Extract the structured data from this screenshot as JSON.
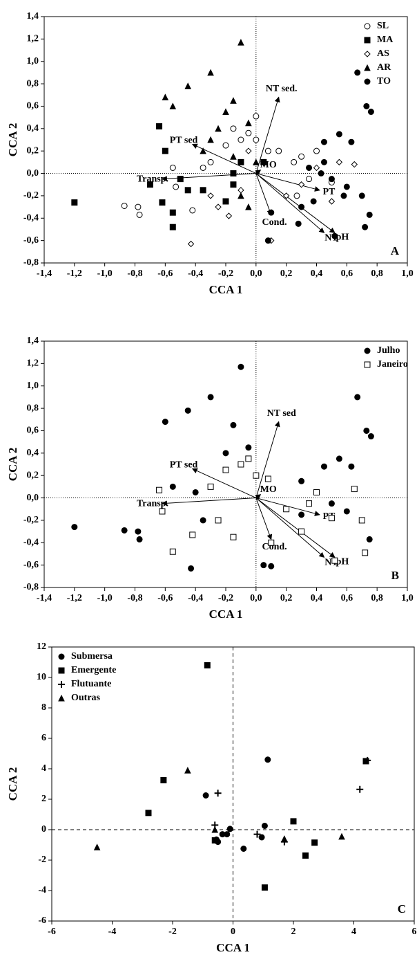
{
  "chart_data": [
    {
      "type": "scatter",
      "x_label": "CCA 1",
      "y_label": "CCA 2",
      "annotation": "A",
      "legend": "upper right",
      "zero_lines": "dotted",
      "xlim": [
        -1.4,
        1.0
      ],
      "ylim": [
        -0.8,
        1.4
      ],
      "xticks": [
        {
          "value": -1.4,
          "label": "-1,4"
        },
        {
          "value": -1.2,
          "label": "-1,2"
        },
        {
          "value": -1.0,
          "label": "-1,0"
        },
        {
          "value": -0.8,
          "label": "-0,8"
        },
        {
          "value": -0.6,
          "label": "-0,6"
        },
        {
          "value": -0.4,
          "label": "-0,4"
        },
        {
          "value": -0.2,
          "label": "-0,2"
        },
        {
          "value": 0,
          "label": "0,0"
        },
        {
          "value": 0.2,
          "label": "0,2"
        },
        {
          "value": 0.4,
          "label": "0,4"
        },
        {
          "value": 0.6,
          "label": "0,6"
        },
        {
          "value": 0.8,
          "label": "0,8"
        },
        {
          "value": 1.0,
          "label": "1,0"
        }
      ],
      "yticks": [
        {
          "value": -0.8,
          "label": "-0,8"
        },
        {
          "value": -0.6,
          "label": "-0,6"
        },
        {
          "value": -0.4,
          "label": "-0,4"
        },
        {
          "value": -0.2,
          "label": "-0,2"
        },
        {
          "value": 0,
          "label": "0,0"
        },
        {
          "value": 0.2,
          "label": "0,2"
        },
        {
          "value": 0.4,
          "label": "0,4"
        },
        {
          "value": 0.6,
          "label": "0,6"
        },
        {
          "value": 0.8,
          "label": "0,8"
        },
        {
          "value": 1.0,
          "label": "1,0"
        },
        {
          "value": 1.2,
          "label": "1,2"
        },
        {
          "value": 1.4,
          "label": "1,4"
        }
      ],
      "series": [
        {
          "name": "SL",
          "marker": "open-circle",
          "color": "#000000",
          "x": [
            -0.87,
            -0.78,
            -0.77,
            -0.55,
            -0.53,
            -0.42,
            -0.3,
            -0.2,
            -0.15,
            -0.1,
            -0.05,
            0.0,
            0.08,
            0.15,
            0.25,
            0.3,
            0.27,
            0.35,
            0.5,
            0.4,
            0.0,
            -0.35
          ],
          "values": [
            -0.29,
            -0.3,
            -0.37,
            0.05,
            -0.12,
            -0.33,
            0.1,
            0.25,
            0.4,
            0.3,
            0.36,
            0.3,
            0.2,
            0.2,
            0.1,
            0.15,
            -0.2,
            -0.05,
            -0.08,
            0.2,
            0.51,
            0.05
          ]
        },
        {
          "name": "MA",
          "marker": "square",
          "color": "#000000",
          "x": [
            -1.2,
            -0.64,
            -0.6,
            -0.62,
            -0.7,
            -0.55,
            -0.55,
            -0.5,
            -0.45,
            -0.15,
            -0.1,
            -0.15,
            -0.2,
            0.05,
            -0.35
          ],
          "values": [
            -0.26,
            0.42,
            0.2,
            -0.26,
            -0.1,
            -0.48,
            -0.35,
            -0.05,
            -0.15,
            0.0,
            0.1,
            -0.1,
            -0.25,
            0.1,
            -0.15
          ]
        },
        {
          "name": "AS",
          "marker": "open-diamond",
          "color": "#000000",
          "x": [
            -0.43,
            0.1,
            0.65,
            0.55,
            0.4,
            0.3,
            0.5,
            -0.25,
            -0.3,
            -0.05,
            -0.1,
            0.2,
            -0.18,
            0.35
          ],
          "values": [
            -0.63,
            -0.6,
            0.08,
            0.1,
            0.05,
            -0.1,
            -0.25,
            -0.3,
            -0.2,
            0.2,
            -0.15,
            -0.2,
            -0.38,
            0.05
          ]
        },
        {
          "name": "AR",
          "marker": "triangle",
          "color": "#000000",
          "x": [
            -0.1,
            -0.3,
            -0.6,
            -0.45,
            -0.55,
            -0.15,
            -0.05,
            -0.2,
            -0.25,
            -0.35,
            -0.3,
            -0.1,
            -0.05,
            0.0,
            -0.15
          ],
          "values": [
            1.17,
            0.9,
            0.68,
            0.78,
            0.6,
            0.65,
            0.45,
            0.55,
            0.4,
            0.2,
            0.3,
            -0.2,
            -0.3,
            0.1,
            0.15
          ]
        },
        {
          "name": "TO",
          "marker": "circle",
          "color": "#000000",
          "x": [
            0.67,
            0.55,
            0.73,
            0.76,
            0.63,
            0.45,
            0.45,
            0.5,
            0.6,
            0.7,
            0.75,
            0.72,
            0.52,
            0.43,
            0.3,
            0.28,
            0.1,
            0.08,
            0.38,
            0.58,
            0.35
          ],
          "values": [
            0.9,
            0.35,
            0.6,
            0.55,
            0.28,
            0.28,
            0.1,
            -0.05,
            -0.12,
            -0.2,
            -0.37,
            -0.48,
            -0.56,
            0.0,
            -0.3,
            -0.45,
            -0.35,
            -0.6,
            -0.25,
            -0.2,
            0.05
          ]
        }
      ],
      "vectors": [
        {
          "label": "NT sed.",
          "x": 0.15,
          "y": 0.68
        },
        {
          "label": "PT sed",
          "x": -0.42,
          "y": 0.26
        },
        {
          "label": "Transp.",
          "x": -0.62,
          "y": -0.05
        },
        {
          "label": "MO",
          "x": 0.03,
          "y": 0.03
        },
        {
          "label": "PT",
          "x": 0.42,
          "y": -0.15
        },
        {
          "label": "Cond.",
          "x": 0.1,
          "y": -0.37
        },
        {
          "label": "NT",
          "x": 0.45,
          "y": -0.53
        },
        {
          "label": "pH",
          "x": 0.52,
          "y": -0.53
        }
      ]
    },
    {
      "type": "scatter",
      "x_label": "CCA 1",
      "y_label": "CCA 2",
      "annotation": "B",
      "legend": "upper right",
      "zero_lines": "dotted",
      "xlim": [
        -1.4,
        1.0
      ],
      "ylim": [
        -0.8,
        1.4
      ],
      "xticks": [
        {
          "value": -1.4,
          "label": "-1,4"
        },
        {
          "value": -1.2,
          "label": "-1,2"
        },
        {
          "value": -1.0,
          "label": "-1,0"
        },
        {
          "value": -0.8,
          "label": "-0,8"
        },
        {
          "value": -0.6,
          "label": "-0,6"
        },
        {
          "value": -0.4,
          "label": "-0,4"
        },
        {
          "value": -0.2,
          "label": "-0,2"
        },
        {
          "value": 0,
          "label": "0,0"
        },
        {
          "value": 0.2,
          "label": "0,2"
        },
        {
          "value": 0.4,
          "label": "0,4"
        },
        {
          "value": 0.6,
          "label": "0,6"
        },
        {
          "value": 0.8,
          "label": "0,8"
        },
        {
          "value": 1.0,
          "label": "1,0"
        }
      ],
      "yticks": [
        {
          "value": -0.8,
          "label": "-0,8"
        },
        {
          "value": -0.6,
          "label": "-0,6"
        },
        {
          "value": -0.4,
          "label": "-0,4"
        },
        {
          "value": -0.2,
          "label": "-0,2"
        },
        {
          "value": 0,
          "label": "0,0"
        },
        {
          "value": 0.2,
          "label": "0,2"
        },
        {
          "value": 0.4,
          "label": "0,4"
        },
        {
          "value": 0.6,
          "label": "0,6"
        },
        {
          "value": 0.8,
          "label": "0,8"
        },
        {
          "value": 1.0,
          "label": "1,0"
        },
        {
          "value": 1.2,
          "label": "1,2"
        },
        {
          "value": 1.4,
          "label": "1,4"
        }
      ],
      "series": [
        {
          "name": "Julho",
          "marker": "circle",
          "color": "#000000",
          "x": [
            -1.2,
            -0.87,
            -0.78,
            -0.77,
            -0.1,
            -0.3,
            -0.6,
            -0.45,
            -0.15,
            0.67,
            0.73,
            0.76,
            0.55,
            0.63,
            0.45,
            -0.43,
            0.05,
            0.1,
            0.75,
            0.5,
            -0.55,
            -0.35,
            -0.2,
            0.3,
            -0.05,
            -0.4,
            0.6,
            0.3
          ],
          "values": [
            -0.26,
            -0.29,
            -0.3,
            -0.37,
            1.17,
            0.9,
            0.68,
            0.78,
            0.65,
            0.9,
            0.6,
            0.55,
            0.35,
            0.28,
            0.28,
            -0.63,
            -0.6,
            -0.61,
            -0.37,
            -0.05,
            0.1,
            -0.2,
            0.4,
            -0.15,
            0.45,
            0.05,
            -0.12,
            0.15
          ]
        },
        {
          "name": "Janeiro",
          "marker": "open-square",
          "color": "#000000",
          "x": [
            -0.64,
            -0.62,
            -0.55,
            -0.42,
            -0.3,
            -0.2,
            -0.1,
            0.0,
            0.08,
            0.35,
            0.5,
            0.65,
            0.7,
            0.72,
            0.52,
            0.3,
            0.4,
            -0.15,
            -0.25,
            0.1,
            -0.05,
            0.2
          ],
          "values": [
            0.07,
            -0.12,
            -0.48,
            -0.33,
            0.1,
            0.25,
            0.3,
            0.2,
            0.17,
            -0.05,
            -0.18,
            0.08,
            -0.2,
            -0.49,
            -0.56,
            -0.3,
            0.05,
            -0.35,
            -0.2,
            -0.4,
            0.35,
            -0.1
          ]
        }
      ],
      "vectors": [
        {
          "label": "NT sed",
          "x": 0.15,
          "y": 0.68
        },
        {
          "label": "PT sed",
          "x": -0.42,
          "y": 0.26
        },
        {
          "label": "Transp.",
          "x": -0.62,
          "y": -0.05
        },
        {
          "label": "MO",
          "x": 0.03,
          "y": 0.03
        },
        {
          "label": "PT",
          "x": 0.42,
          "y": -0.15
        },
        {
          "label": "Cond.",
          "x": 0.1,
          "y": -0.37
        },
        {
          "label": "NT",
          "x": 0.45,
          "y": -0.53
        },
        {
          "label": "pH",
          "x": 0.52,
          "y": -0.53
        }
      ]
    },
    {
      "type": "scatter",
      "x_label": "CCA 1",
      "y_label": "CCA 2",
      "annotation": "C",
      "legend": "upper left",
      "zero_lines": "dashed",
      "xlim": [
        -6,
        6
      ],
      "ylim": [
        -6,
        12
      ],
      "xticks": [
        -6,
        -4,
        -2,
        0,
        2,
        4,
        6
      ],
      "yticks": [
        -6,
        -4,
        -2,
        0,
        2,
        4,
        6,
        8,
        10,
        12
      ],
      "series": [
        {
          "name": "Submersa",
          "marker": "circle",
          "color": "#000000",
          "x": [
            -0.9,
            1.15,
            -0.5,
            -0.35,
            -0.1,
            -0.2,
            0.35,
            1.05,
            0.95,
            -0.55
          ],
          "values": [
            2.25,
            4.6,
            -0.8,
            -0.3,
            0.05,
            -0.3,
            -1.25,
            0.25,
            -0.5,
            -0.65
          ]
        },
        {
          "name": "Emergente",
          "marker": "square",
          "color": "#000000",
          "x": [
            -0.85,
            -2.3,
            -2.8,
            -0.6,
            2.0,
            2.7,
            2.4,
            1.05,
            4.4
          ],
          "values": [
            10.8,
            3.25,
            1.1,
            -0.7,
            0.55,
            -0.85,
            -1.7,
            -3.8,
            4.5
          ]
        },
        {
          "name": "Flutuante",
          "marker": "plus",
          "color": "#000000",
          "x": [
            -0.5,
            -0.6,
            0.8,
            1.7,
            4.2,
            4.45
          ],
          "values": [
            2.4,
            0.3,
            -0.3,
            -0.8,
            2.65,
            4.55
          ]
        },
        {
          "name": "Outras",
          "marker": "triangle",
          "color": "#000000",
          "x": [
            -1.5,
            -4.5,
            -0.6,
            3.6,
            1.7
          ],
          "values": [
            3.9,
            -1.15,
            0.0,
            -0.45,
            -0.6
          ]
        }
      ]
    }
  ]
}
